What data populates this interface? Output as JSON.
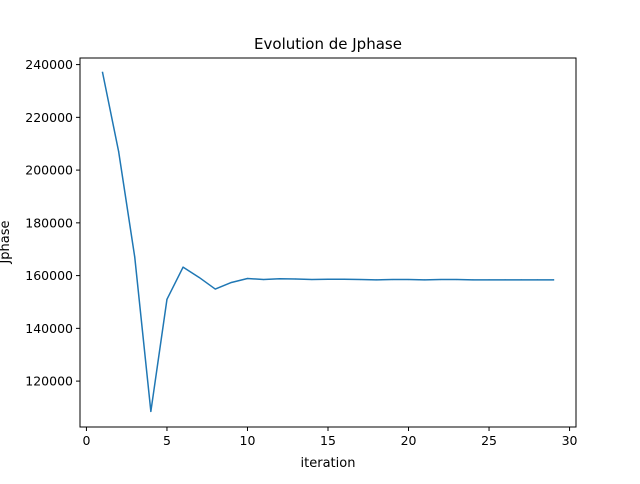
{
  "chart_data": {
    "type": "line",
    "title": "Evolution de Jphase",
    "xlabel": "iteration",
    "ylabel": "Jphase",
    "xlim": [
      -0.4,
      30.4
    ],
    "ylim": [
      102600,
      242500
    ],
    "xticks": [
      0,
      5,
      10,
      15,
      20,
      25,
      30
    ],
    "xtick_labels": [
      "0",
      "5",
      "10",
      "15",
      "20",
      "25",
      "30"
    ],
    "yticks": [
      120000,
      140000,
      160000,
      180000,
      200000,
      220000,
      240000
    ],
    "ytick_labels": [
      "120000",
      "140000",
      "160000",
      "180000",
      "200000",
      "220000",
      "240000"
    ],
    "grid": false,
    "series": [
      {
        "color": "#1f77b4",
        "x": [
          1,
          2,
          3,
          4,
          5,
          6,
          7,
          8,
          9,
          10,
          11,
          12,
          13,
          14,
          15,
          16,
          17,
          18,
          19,
          20,
          21,
          22,
          23,
          24,
          25,
          26,
          27,
          28,
          29
        ],
        "y": [
          237000,
          207000,
          167000,
          108500,
          151000,
          163200,
          159300,
          154900,
          157400,
          158900,
          158500,
          158800,
          158700,
          158500,
          158600,
          158600,
          158500,
          158400,
          158500,
          158500,
          158400,
          158500,
          158500,
          158400,
          158400,
          158400,
          158400,
          158400,
          158400
        ]
      }
    ]
  }
}
